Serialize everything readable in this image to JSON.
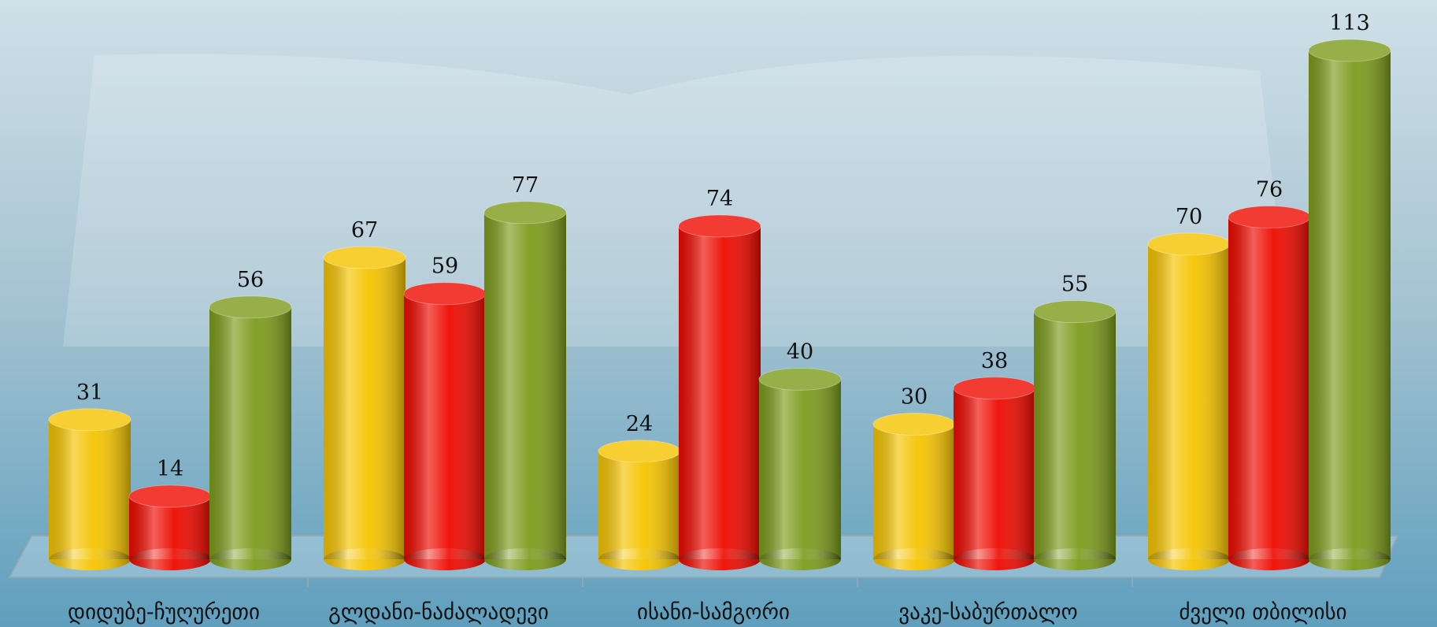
{
  "chart_data": {
    "type": "bar",
    "categories": [
      "დიდუბე-ჩუღურეთი",
      "გლდანი-ნაძალადევი",
      "ისანი-სამგორი",
      "ვაკე-საბურთალო",
      "ძველი თბილისი"
    ],
    "series": [
      {
        "color": "#f5c400",
        "values": [
          31,
          67,
          24,
          30,
          70
        ]
      },
      {
        "color": "#ee0a00",
        "values": [
          14,
          59,
          74,
          38,
          76
        ]
      },
      {
        "color": "#7c9c1c",
        "values": [
          56,
          77,
          40,
          55,
          113
        ]
      }
    ]
  }
}
